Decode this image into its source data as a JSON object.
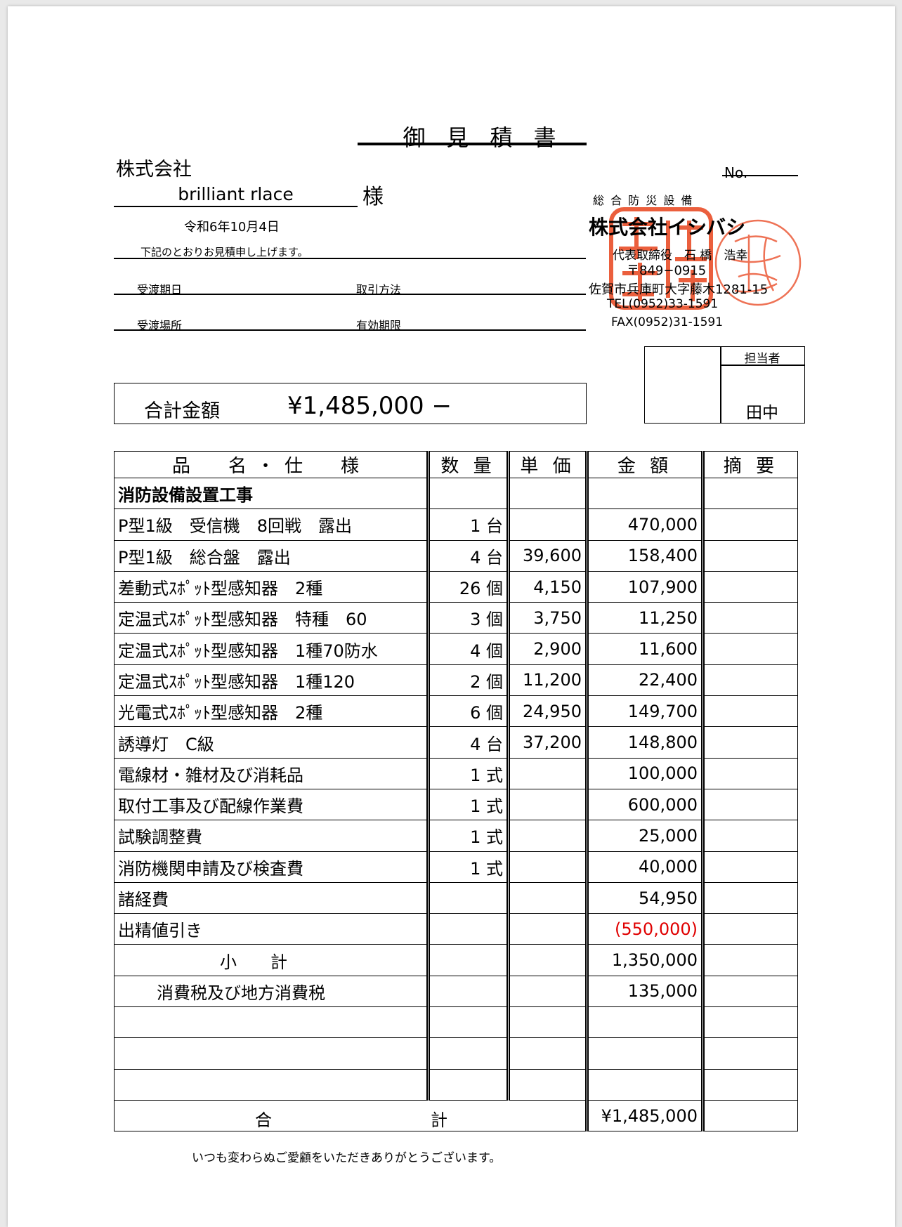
{
  "document": {
    "title": "御見積書",
    "no_label": "No.",
    "client_prefix": "株式会社",
    "client_name": "brilliant rlace",
    "honorific": "様",
    "date": "令和6年10月4日",
    "intro": "下記のとおりお見積申し上げます。",
    "fields": {
      "delivery_date_label": "受渡期日",
      "payment_method_label": "取引方法",
      "delivery_place_label": "受渡場所",
      "validity_label": "有効期限"
    },
    "total_label": "合計金額",
    "total_value": "¥1,485,000 −",
    "footer": "いつも変わらぬご愛顧をいただきありがとうございます。"
  },
  "issuer": {
    "tagline": "総 合 防 災 設 備",
    "company": "株式会社イシバシ",
    "representative": "代表取締役　石 橋　浩幸",
    "postal": "〒849−0915",
    "address": "佐賀市兵庫町大字藤木1281-15",
    "tel": "TEL(0952)33-1591",
    "fax": "FAX(0952)31-1591",
    "stamp_color": "#e8431c"
  },
  "person_box": {
    "label": "担当者",
    "name": "田中"
  },
  "table": {
    "headers": [
      "品　名・仕　様",
      "数 量",
      "単 価",
      "金 額",
      "摘 要"
    ],
    "rows": [
      {
        "name": "消防設備設置工事",
        "qty": "",
        "price": "",
        "amount": "",
        "bold": true
      },
      {
        "name": "P型1級　受信機　8回戦　露出",
        "qty": "1 台",
        "price": "",
        "amount": "470,000"
      },
      {
        "name": "P型1級　総合盤　露出",
        "qty": "4 台",
        "price": "39,600",
        "amount": "158,400"
      },
      {
        "name": "差動式ｽﾎﾟｯﾄ型感知器　2種",
        "qty": "26 個",
        "price": "4,150",
        "amount": "107,900"
      },
      {
        "name": "定温式ｽﾎﾟｯﾄ型感知器　特種　60",
        "qty": "3 個",
        "price": "3,750",
        "amount": "11,250"
      },
      {
        "name": "定温式ｽﾎﾟｯﾄ型感知器　1種70防水",
        "qty": "4 個",
        "price": "2,900",
        "amount": "11,600"
      },
      {
        "name": "定温式ｽﾎﾟｯﾄ型感知器　1種120",
        "qty": "2 個",
        "price": "11,200",
        "amount": "22,400"
      },
      {
        "name": "光電式ｽﾎﾟｯﾄ型感知器　2種",
        "qty": "6 個",
        "price": "24,950",
        "amount": "149,700"
      },
      {
        "name": "誘導灯　C級",
        "qty": "4 台",
        "price": "37,200",
        "amount": "148,800"
      },
      {
        "name": "電線材・雑材及び消耗品",
        "qty": "1 式",
        "price": "",
        "amount": "100,000"
      },
      {
        "name": "取付工事及び配線作業費",
        "qty": "1 式",
        "price": "",
        "amount": "600,000"
      },
      {
        "name": "試験調整費",
        "qty": "1 式",
        "price": "",
        "amount": "25,000"
      },
      {
        "name": "消防機関申請及び検査費",
        "qty": "1 式",
        "price": "",
        "amount": "40,000"
      },
      {
        "name": "諸経費",
        "qty": "",
        "price": "",
        "amount": "54,950"
      },
      {
        "name": "出精値引き",
        "qty": "",
        "price": "",
        "amount": "(550,000)",
        "red": true
      },
      {
        "name": "小　　計",
        "qty": "",
        "price": "",
        "amount": "1,350,000",
        "indent": 150
      },
      {
        "name": "消費税及び地方消費税",
        "qty": "",
        "price": "",
        "amount": "135,000",
        "indent": 60
      },
      {
        "name": "",
        "qty": "",
        "price": "",
        "amount": ""
      },
      {
        "name": "",
        "qty": "",
        "price": "",
        "amount": ""
      },
      {
        "name": "",
        "qty": "",
        "price": "",
        "amount": ""
      }
    ],
    "total_row": {
      "label_left": "合",
      "label_right": "計",
      "amount": "¥1,485,000"
    }
  }
}
